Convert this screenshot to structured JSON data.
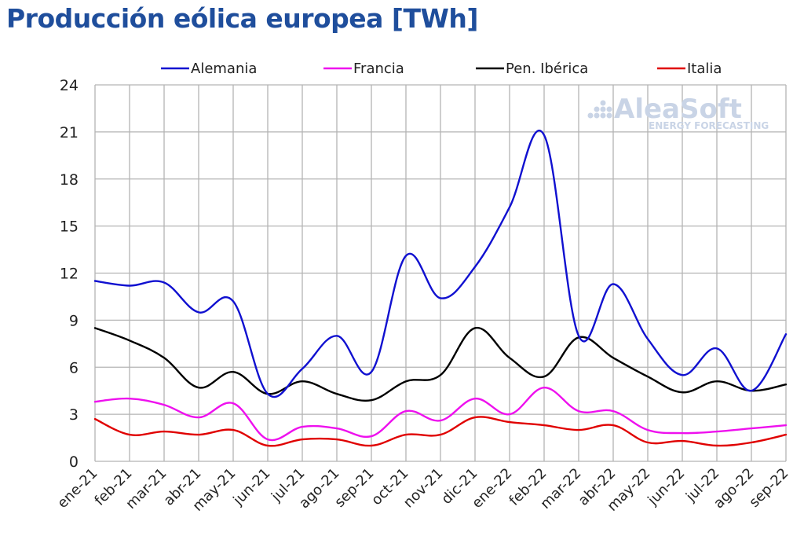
{
  "header": {
    "title": "Producción eólica europea [TWh]"
  },
  "watermark": {
    "brand": "AleaSoft",
    "tagline": "ENERGY FORECASTING"
  },
  "colors": {
    "Alemania": "#1010d0",
    "Francia": "#ee10ee",
    "Pen. Ibérica": "#000000",
    "Italia": "#e00000"
  },
  "chart_data": {
    "type": "line",
    "title": "Producción eólica europea [TWh]",
    "xlabel": "",
    "ylabel": "",
    "ylim": [
      0,
      24
    ],
    "yticks": [
      "0",
      "3",
      "6",
      "9",
      "12",
      "15",
      "18",
      "21",
      "24"
    ],
    "grid": true,
    "legend_position": "top",
    "categories": [
      "ene-21",
      "feb-21",
      "mar-21",
      "abr-21",
      "may-21",
      "jun-21",
      "jul-21",
      "ago-21",
      "sep-21",
      "oct-21",
      "nov-21",
      "dic-21",
      "ene-22",
      "feb-22",
      "mar-22",
      "abr-22",
      "may-22",
      "jun-22",
      "jul-22",
      "ago-22",
      "sep-22"
    ],
    "series": [
      {
        "name": "Alemania",
        "values": [
          11.5,
          11.2,
          11.4,
          9.5,
          10.2,
          4.3,
          5.9,
          8.0,
          5.7,
          13.1,
          10.4,
          12.4,
          16.2,
          20.8,
          8.0,
          11.3,
          7.8,
          5.5,
          7.2,
          4.5,
          8.1
        ]
      },
      {
        "name": "Francia",
        "values": [
          3.8,
          4.0,
          3.6,
          2.8,
          3.7,
          1.4,
          2.2,
          2.1,
          1.6,
          3.2,
          2.6,
          4.0,
          3.0,
          4.7,
          3.2,
          3.2,
          2.0,
          1.8,
          1.9,
          2.1,
          2.3
        ]
      },
      {
        "name": "Pen. Ibérica",
        "values": [
          8.5,
          7.7,
          6.6,
          4.7,
          5.7,
          4.3,
          5.1,
          4.3,
          3.9,
          5.1,
          5.5,
          8.5,
          6.6,
          5.4,
          7.9,
          6.6,
          5.4,
          4.4,
          5.1,
          4.5,
          4.9
        ]
      },
      {
        "name": "Italia",
        "values": [
          2.7,
          1.7,
          1.9,
          1.7,
          2.0,
          1.0,
          1.4,
          1.4,
          1.0,
          1.7,
          1.7,
          2.8,
          2.5,
          2.3,
          2.0,
          2.3,
          1.2,
          1.3,
          1.0,
          1.2,
          1.7
        ]
      }
    ]
  }
}
